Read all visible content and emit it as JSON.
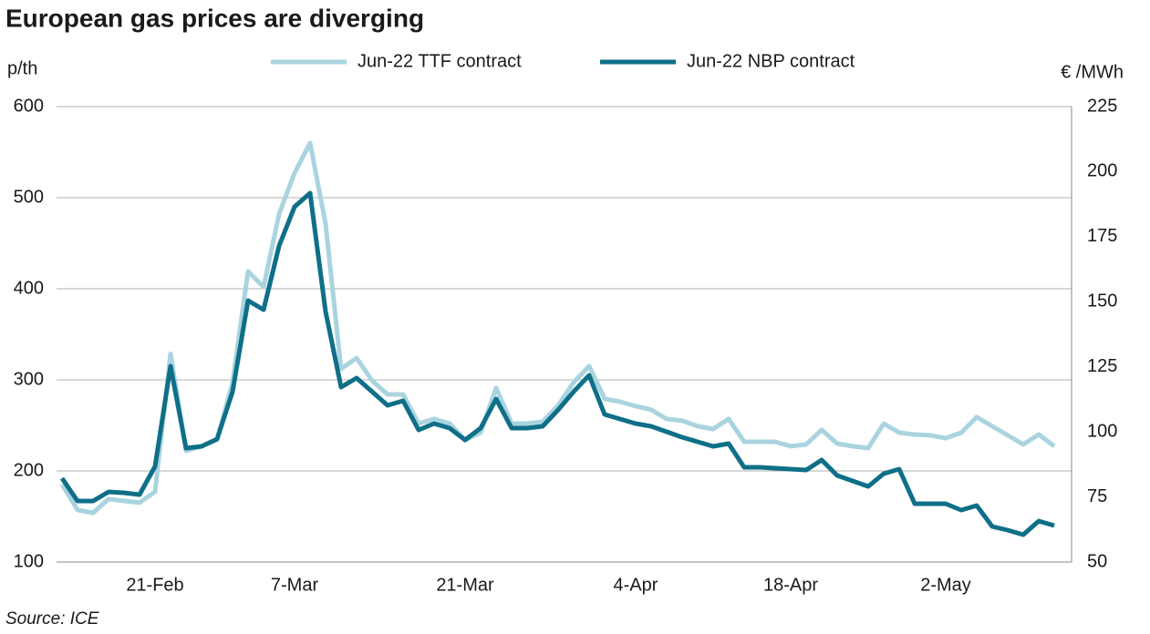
{
  "chart_data": {
    "type": "line",
    "title": "European gas prices are diverging",
    "y_label": "p/th",
    "y2_label": "€ /MWh",
    "source": "Source: ICE",
    "categories": [
      null,
      null,
      null,
      null,
      null,
      null,
      "21-Feb",
      null,
      null,
      null,
      null,
      null,
      null,
      null,
      null,
      "7-Mar",
      null,
      null,
      null,
      null,
      null,
      null,
      null,
      null,
      null,
      null,
      "21-Mar",
      null,
      null,
      null,
      null,
      null,
      null,
      null,
      null,
      null,
      null,
      "4-Apr",
      null,
      null,
      null,
      null,
      null,
      null,
      null,
      null,
      null,
      "18-Apr",
      null,
      null,
      null,
      null,
      null,
      null,
      null,
      null,
      null,
      "2-May",
      null,
      null,
      null,
      null,
      null,
      null,
      null
    ],
    "series": [
      {
        "name": "Jun-22 TTF contract",
        "color": "#a9d4df",
        "axis": "y2",
        "values": [
          79.8,
          70,
          68.9,
          74.2,
          73.5,
          72.8,
          77,
          130,
          92.7,
          94.5,
          97,
          119,
          161.7,
          155.7,
          183.7,
          199.5,
          211,
          180,
          124.2,
          128.4,
          119.7,
          114.4,
          114.4,
          103.2,
          105,
          103.2,
          96.9,
          99.7,
          116.9,
          103.2,
          103.2,
          103.9,
          110.2,
          119,
          125.3,
          112.7,
          111.6,
          109.9,
          108.5,
          105,
          104.3,
          102.2,
          101.1,
          105,
          96.2,
          96.2,
          96.2,
          94.5,
          95.2,
          100.8,
          95.5,
          94.5,
          93.8,
          103.2,
          99.7,
          99,
          98.7,
          97.6,
          99.7,
          105.7,
          102.2,
          98.7,
          95.2,
          99,
          94.5
        ]
      },
      {
        "name": "Jun-22 NBP contract",
        "color": "#0f6f88",
        "values": [
          192,
          167,
          167,
          177,
          176,
          174,
          205,
          315,
          225,
          227,
          235,
          287,
          387,
          377,
          447,
          490,
          505,
          375,
          292,
          302,
          287,
          272,
          277,
          245,
          252,
          247,
          234,
          247,
          279,
          247,
          247,
          249,
          267,
          287,
          305,
          262,
          257,
          252,
          249,
          243,
          237,
          232,
          227,
          230,
          204,
          204,
          203,
          202,
          201,
          212,
          195,
          189,
          183,
          197,
          202,
          164,
          164,
          164,
          157,
          162,
          139,
          135,
          130,
          145,
          140
        ]
      }
    ],
    "ylim": [
      100,
      600
    ],
    "yticks": [
      100,
      200,
      300,
      400,
      500,
      600
    ],
    "y2lim": [
      50,
      225
    ],
    "y2ticks": [
      50,
      75,
      100,
      125,
      150,
      175,
      200,
      225
    ],
    "grid": true,
    "legend": "top"
  }
}
